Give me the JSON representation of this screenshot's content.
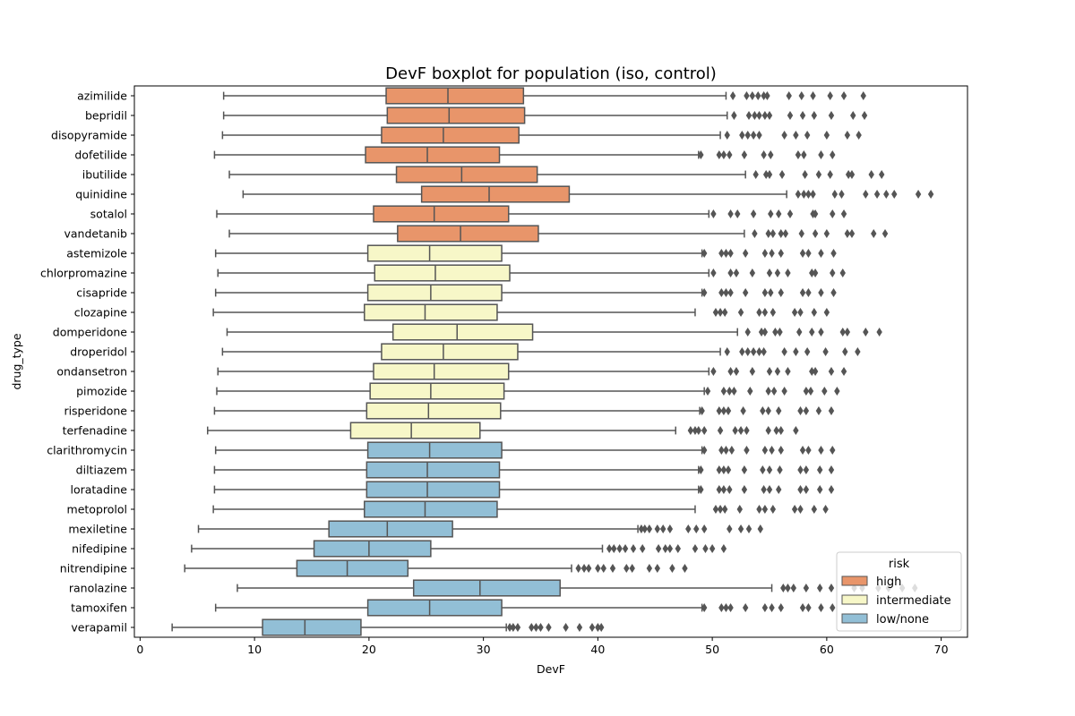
{
  "chart_data": {
    "type": "boxplot",
    "title": "DevF boxplot for population (iso, control)",
    "xlabel": "DevF",
    "ylabel": "drug_type",
    "xlim": [
      -0.5,
      72.3
    ],
    "xticks": [
      0,
      10,
      20,
      30,
      40,
      50,
      60,
      70
    ],
    "grid": false,
    "legend": {
      "title": "risk",
      "position": "lower-right",
      "entries": [
        {
          "label": "high",
          "color": "#e8956a"
        },
        {
          "label": "intermediate",
          "color": "#f7f7c8"
        },
        {
          "label": "low/none",
          "color": "#92bfd6"
        }
      ]
    },
    "colors": {
      "high": "#e8956a",
      "intermediate": "#f7f7c8",
      "low/none": "#92bfd6",
      "line": "#555555"
    },
    "categories": [
      {
        "name": "azimilide",
        "risk": "high",
        "min": 7.3,
        "q1": 21.5,
        "median": 26.9,
        "q3": 33.5,
        "max": 51.2,
        "outliers": [
          51.8,
          53.0,
          53.5,
          54.0,
          54.5,
          54.8,
          56.7,
          57.8,
          58.8,
          60.3,
          61.5,
          63.2
        ]
      },
      {
        "name": "bepridil",
        "risk": "high",
        "min": 7.3,
        "q1": 21.6,
        "median": 27.0,
        "q3": 33.6,
        "max": 51.3,
        "outliers": [
          51.9,
          53.2,
          53.7,
          54.1,
          54.6,
          55.0,
          56.8,
          57.9,
          58.9,
          60.4,
          62.3,
          63.3
        ]
      },
      {
        "name": "disopyramide",
        "risk": "high",
        "min": 7.2,
        "q1": 21.1,
        "median": 26.5,
        "q3": 33.1,
        "max": 50.7,
        "outliers": [
          51.3,
          52.6,
          53.1,
          53.6,
          54.1,
          56.3,
          57.3,
          58.3,
          60.0,
          61.8,
          62.8
        ]
      },
      {
        "name": "dofetilide",
        "risk": "high",
        "min": 6.5,
        "q1": 19.7,
        "median": 25.1,
        "q3": 31.4,
        "max": 48.8,
        "outliers": [
          49.0,
          50.6,
          51.0,
          51.5,
          52.8,
          54.5,
          55.1,
          57.5,
          58.0,
          59.5,
          60.5
        ]
      },
      {
        "name": "ibutilide",
        "risk": "high",
        "min": 7.8,
        "q1": 22.4,
        "median": 28.1,
        "q3": 34.7,
        "max": 52.9,
        "outliers": [
          53.8,
          54.7,
          55.0,
          56.1,
          58.1,
          59.3,
          60.3,
          61.9,
          62.2,
          63.9,
          64.8
        ]
      },
      {
        "name": "quinidine",
        "risk": "high",
        "min": 9.0,
        "q1": 24.6,
        "median": 30.5,
        "q3": 37.5,
        "max": 56.5,
        "outliers": [
          57.5,
          58.0,
          58.4,
          58.8,
          60.7,
          61.3,
          63.4,
          64.4,
          65.2,
          65.9,
          68.0,
          69.1
        ]
      },
      {
        "name": "sotalol",
        "risk": "high",
        "min": 6.7,
        "q1": 20.4,
        "median": 25.7,
        "q3": 32.2,
        "max": 49.7,
        "outliers": [
          50.1,
          51.6,
          52.2,
          53.6,
          55.1,
          55.8,
          56.8,
          58.8,
          59.0,
          60.5,
          61.5
        ]
      },
      {
        "name": "vandetanib",
        "risk": "high",
        "min": 7.8,
        "q1": 22.5,
        "median": 28.0,
        "q3": 34.8,
        "max": 52.8,
        "outliers": [
          53.7,
          54.9,
          55.3,
          56.0,
          56.4,
          57.8,
          59.0,
          60.0,
          61.8,
          62.2,
          64.1,
          65.1
        ]
      },
      {
        "name": "astemizole",
        "risk": "intermediate",
        "min": 6.6,
        "q1": 19.9,
        "median": 25.3,
        "q3": 31.6,
        "max": 49.1,
        "outliers": [
          49.3,
          50.8,
          51.2,
          51.6,
          52.9,
          54.6,
          55.2,
          56.0,
          57.9,
          58.4,
          59.5,
          60.6
        ]
      },
      {
        "name": "chlorpromazine",
        "risk": "intermediate",
        "min": 6.8,
        "q1": 20.5,
        "median": 25.8,
        "q3": 32.3,
        "max": 49.7,
        "outliers": [
          50.1,
          51.6,
          52.1,
          53.5,
          55.0,
          55.7,
          56.6,
          58.7,
          59.0,
          60.5,
          61.4
        ]
      },
      {
        "name": "cisapride",
        "risk": "intermediate",
        "min": 6.6,
        "q1": 19.9,
        "median": 25.4,
        "q3": 31.6,
        "max": 49.1,
        "outliers": [
          49.3,
          50.8,
          51.2,
          51.6,
          52.9,
          54.6,
          55.1,
          56.0,
          57.9,
          58.4,
          59.5,
          60.6
        ]
      },
      {
        "name": "clozapine",
        "risk": "intermediate",
        "min": 6.4,
        "q1": 19.6,
        "median": 24.9,
        "q3": 31.2,
        "max": 48.5,
        "outliers": [
          50.3,
          50.7,
          51.1,
          52.5,
          54.1,
          54.6,
          55.3,
          57.2,
          57.7,
          58.9,
          60.0
        ]
      },
      {
        "name": "domperidone",
        "risk": "intermediate",
        "min": 7.6,
        "q1": 22.1,
        "median": 27.7,
        "q3": 34.3,
        "max": 52.2,
        "outliers": [
          53.1,
          54.3,
          54.6,
          55.5,
          55.9,
          57.6,
          58.7,
          59.5,
          61.4,
          61.8,
          63.4,
          64.6
        ]
      },
      {
        "name": "droperidol",
        "risk": "intermediate",
        "min": 7.2,
        "q1": 21.1,
        "median": 26.5,
        "q3": 33.0,
        "max": 50.7,
        "outliers": [
          51.3,
          52.6,
          53.1,
          53.6,
          54.1,
          54.5,
          56.3,
          57.3,
          58.3,
          59.9,
          61.6,
          62.7
        ]
      },
      {
        "name": "ondansetron",
        "risk": "intermediate",
        "min": 6.8,
        "q1": 20.4,
        "median": 25.7,
        "q3": 32.2,
        "max": 49.7,
        "outliers": [
          50.1,
          51.6,
          52.1,
          53.5,
          55.0,
          55.7,
          56.6,
          58.7,
          59.0,
          60.4,
          61.5
        ]
      },
      {
        "name": "pimozide",
        "risk": "intermediate",
        "min": 6.7,
        "q1": 20.1,
        "median": 25.4,
        "q3": 31.8,
        "max": 49.3,
        "outliers": [
          49.6,
          51.0,
          51.5,
          51.9,
          53.3,
          54.9,
          55.4,
          56.3,
          58.2,
          58.6,
          59.8,
          60.9
        ]
      },
      {
        "name": "risperidone",
        "risk": "intermediate",
        "min": 6.5,
        "q1": 19.8,
        "median": 25.2,
        "q3": 31.5,
        "max": 48.9,
        "outliers": [
          49.1,
          50.6,
          51.0,
          51.4,
          52.7,
          54.4,
          54.9,
          55.8,
          57.7,
          58.2,
          59.3,
          60.4
        ]
      },
      {
        "name": "terfenadine",
        "risk": "intermediate",
        "min": 5.9,
        "q1": 18.4,
        "median": 23.7,
        "q3": 29.7,
        "max": 46.8,
        "outliers": [
          48.1,
          48.5,
          48.8,
          49.3,
          50.7,
          52.0,
          52.5,
          53.0,
          54.9,
          55.6,
          56.0,
          57.3
        ]
      },
      {
        "name": "clarithromycin",
        "risk": "low/none",
        "min": 6.6,
        "q1": 19.9,
        "median": 25.3,
        "q3": 31.6,
        "max": 49.1,
        "outliers": [
          49.3,
          50.8,
          51.2,
          51.7,
          53.0,
          54.6,
          55.2,
          56.0,
          57.9,
          58.4,
          59.5,
          60.5
        ]
      },
      {
        "name": "diltiazem",
        "risk": "low/none",
        "min": 6.5,
        "q1": 19.8,
        "median": 25.1,
        "q3": 31.4,
        "max": 48.8,
        "outliers": [
          49.0,
          50.6,
          51.0,
          51.4,
          52.8,
          54.4,
          55.0,
          55.9,
          57.7,
          58.2,
          59.4,
          60.4
        ]
      },
      {
        "name": "loratadine",
        "risk": "low/none",
        "min": 6.5,
        "q1": 19.8,
        "median": 25.1,
        "q3": 31.4,
        "max": 48.8,
        "outliers": [
          49.0,
          50.6,
          51.0,
          51.5,
          52.8,
          54.5,
          55.0,
          55.8,
          57.7,
          58.2,
          59.4,
          60.4
        ]
      },
      {
        "name": "metoprolol",
        "risk": "low/none",
        "min": 6.4,
        "q1": 19.6,
        "median": 24.9,
        "q3": 31.2,
        "max": 48.5,
        "outliers": [
          50.3,
          50.7,
          51.1,
          52.4,
          54.1,
          54.6,
          55.3,
          57.2,
          57.7,
          58.9,
          59.9
        ]
      },
      {
        "name": "mexiletine",
        "risk": "low/none",
        "min": 5.1,
        "q1": 16.5,
        "median": 21.6,
        "q3": 27.3,
        "max": 43.5,
        "outliers": [
          43.8,
          44.1,
          44.5,
          45.2,
          45.7,
          46.3,
          47.9,
          48.6,
          49.3,
          51.5,
          52.5,
          53.2,
          54.2
        ]
      },
      {
        "name": "nifedipine",
        "risk": "low/none",
        "min": 4.5,
        "q1": 15.2,
        "median": 20.0,
        "q3": 25.4,
        "max": 40.4,
        "outliers": [
          41.0,
          41.4,
          41.9,
          42.4,
          43.1,
          43.9,
          45.3,
          45.9,
          46.3,
          47.0,
          48.5,
          49.4,
          50.0,
          51.0
        ]
      },
      {
        "name": "nitrendipine",
        "risk": "low/none",
        "min": 3.9,
        "q1": 13.7,
        "median": 18.1,
        "q3": 23.4,
        "max": 37.7,
        "outliers": [
          38.3,
          38.8,
          39.2,
          40.0,
          40.5,
          41.3,
          42.5,
          43.0,
          44.5,
          45.2,
          46.5,
          47.6
        ]
      },
      {
        "name": "ranolazine",
        "risk": "low/none",
        "min": 8.5,
        "q1": 23.9,
        "median": 29.7,
        "q3": 36.7,
        "max": 55.2,
        "outliers": [
          56.2,
          56.6,
          57.1,
          58.2,
          59.4,
          60.4,
          62.4,
          63.1,
          64.5,
          65.4,
          66.6,
          67.7
        ]
      },
      {
        "name": "tamoxifen",
        "risk": "low/none",
        "min": 6.6,
        "q1": 19.9,
        "median": 25.3,
        "q3": 31.6,
        "max": 49.1,
        "outliers": [
          49.3,
          50.8,
          51.2,
          51.6,
          52.9,
          54.6,
          55.2,
          56.0,
          57.9,
          58.4,
          59.5,
          60.5
        ]
      },
      {
        "name": "verapamil",
        "risk": "low/none",
        "min": 2.8,
        "q1": 10.7,
        "median": 14.4,
        "q3": 19.3,
        "max": 32.0,
        "outliers": [
          32.3,
          32.6,
          33.0,
          34.2,
          34.6,
          35.0,
          35.7,
          37.2,
          38.4,
          39.5,
          40.0,
          40.3
        ]
      }
    ]
  }
}
